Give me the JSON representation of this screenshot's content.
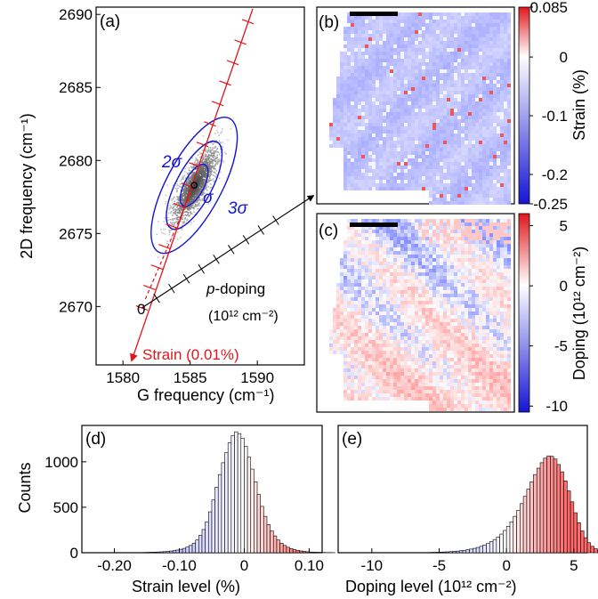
{
  "colors": {
    "blue": "#1515d4",
    "red": "#e0161b",
    "black": "#000000"
  },
  "chart_data": [
    {
      "panel": "(a)",
      "type": "scatter",
      "xlabel": "G frequency (cm⁻¹)",
      "ylabel": "2D frequency (cm⁻¹)",
      "xlim": [
        1578,
        1593.5
      ],
      "ylim": [
        2666,
        2690.5
      ],
      "xticks": [
        1580,
        1585,
        1590
      ],
      "yticks": [
        2670,
        2675,
        2680,
        2685,
        2690
      ],
      "sigma_labels": [
        "σ",
        "2σ",
        "3σ"
      ],
      "origin_label": "0",
      "doping_axis_label": "p-doping",
      "doping_units": "(10¹² cm⁻²)",
      "strain_axis_label": "Strain (0.01%)",
      "density_center": [
        1585.3,
        2678.3
      ],
      "origin_point": [
        1581.4,
        2669.9
      ]
    },
    {
      "panel": "(b)",
      "type": "heatmap",
      "colorbar_label": "Strain (%)",
      "colorbar_ticks": [
        "0.085",
        "0",
        "-0.1",
        "-0.2",
        "-0.25"
      ],
      "colorbar_values": [
        0.085,
        0,
        -0.1,
        -0.2,
        -0.25
      ],
      "range": [
        -0.25,
        0.085
      ]
    },
    {
      "panel": "(c)",
      "type": "heatmap",
      "colorbar_label": "Doping (10¹² cm⁻²)",
      "colorbar_ticks": [
        "5",
        "0",
        "-5",
        "-10"
      ],
      "colorbar_values": [
        5,
        0,
        -5,
        -10
      ],
      "range": [
        -10.5,
        6
      ]
    },
    {
      "panel": "(d)",
      "type": "bar",
      "xlabel": "Strain level (%)",
      "ylabel": "Counts",
      "xlim": [
        -0.25,
        0.12
      ],
      "ylim": [
        0,
        1400
      ],
      "xticks": [
        "-0.20",
        "-0.10",
        "0",
        "0.10"
      ],
      "xtick_values": [
        -0.2,
        -0.1,
        0,
        0.1
      ],
      "yticks": [
        "0",
        "500",
        "1000"
      ],
      "ytick_values": [
        0,
        500,
        1000
      ],
      "bin_start": -0.16,
      "bin_width": 0.005,
      "values": [
        2,
        3,
        4,
        5,
        6,
        8,
        10,
        12,
        15,
        19,
        24,
        30,
        38,
        48,
        62,
        80,
        105,
        140,
        190,
        255,
        340,
        450,
        580,
        720,
        860,
        990,
        1100,
        1210,
        1290,
        1330,
        1310,
        1260,
        1170,
        1050,
        920,
        780,
        640,
        510,
        400,
        310,
        240,
        185,
        140,
        105,
        80,
        60,
        45,
        34,
        26,
        20,
        15,
        11,
        8,
        6,
        5,
        4,
        3,
        2,
        2,
        1
      ]
    },
    {
      "panel": "(e)",
      "type": "bar",
      "xlabel": "Doping level (10¹² cm⁻²)",
      "xlim": [
        -12.5,
        6
      ],
      "ylim": [
        0,
        1400
      ],
      "xticks": [
        "-10",
        "-5",
        "0",
        "5"
      ],
      "xtick_values": [
        -10,
        -5,
        0,
        5
      ],
      "bin_start": -6,
      "bin_width": 0.25,
      "values": [
        2,
        3,
        4,
        5,
        6,
        8,
        10,
        12,
        15,
        18,
        22,
        27,
        33,
        40,
        48,
        58,
        70,
        85,
        102,
        122,
        145,
        172,
        205,
        245,
        290,
        340,
        400,
        465,
        540,
        620,
        700,
        780,
        860,
        930,
        990,
        1040,
        1065,
        1060,
        1030,
        970,
        890,
        790,
        680,
        560,
        440,
        330,
        240,
        165,
        110,
        70,
        44,
        27,
        16,
        10,
        6,
        4,
        2,
        1
      ]
    }
  ]
}
